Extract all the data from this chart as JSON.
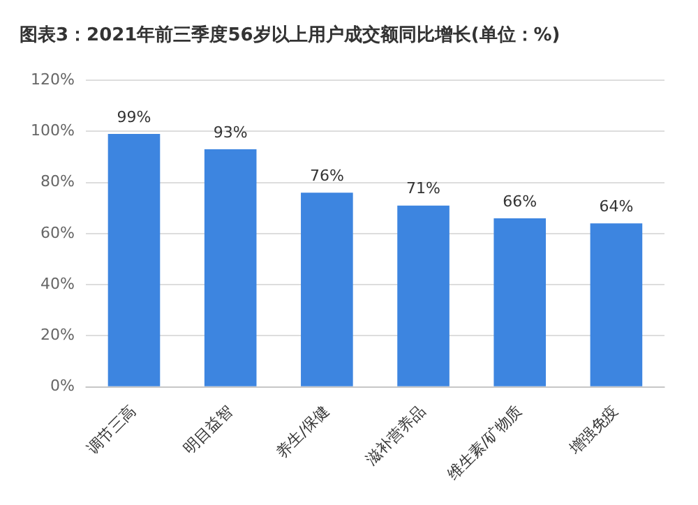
{
  "chart_data": {
    "type": "bar",
    "title": "图表3：2021年前三季度56岁以上用户成交额同比增长(单位：%)",
    "categories": [
      "调节三高",
      "明目益智",
      "养生/保健",
      "滋补营养品",
      "维生素/矿物质",
      "增强免疫"
    ],
    "values": [
      99,
      93,
      76,
      71,
      66,
      64
    ],
    "value_labels": [
      "99%",
      "93%",
      "76%",
      "71%",
      "66%",
      "64%"
    ],
    "color": "#3d85e0",
    "ylim": [
      0,
      120
    ],
    "yticks": [
      {
        "value": 0,
        "label": "0%"
      },
      {
        "value": 20,
        "label": "20%"
      },
      {
        "value": 40,
        "label": "40%"
      },
      {
        "value": 60,
        "label": "60%"
      },
      {
        "value": 80,
        "label": "80%"
      },
      {
        "value": 100,
        "label": "100%"
      },
      {
        "value": 120,
        "label": "120%"
      }
    ],
    "grid": "y",
    "legend": false
  }
}
